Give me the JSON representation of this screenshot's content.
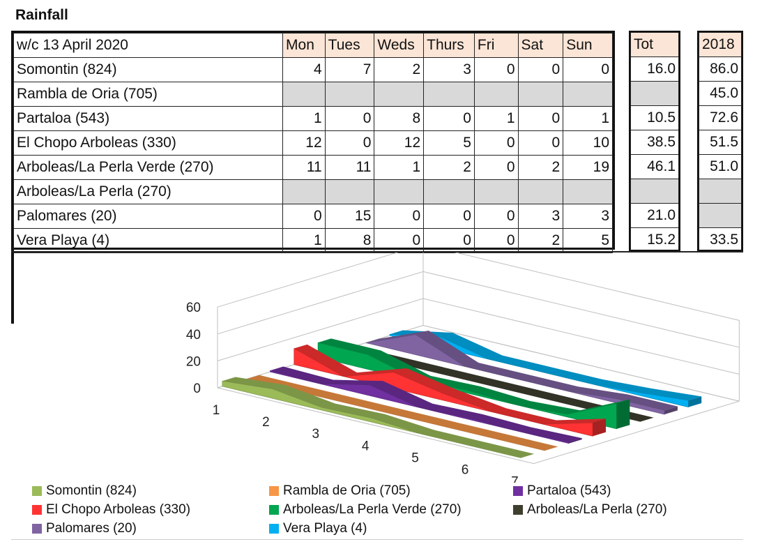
{
  "title": "Rainfall",
  "table": {
    "corner": "w/c 13 April 2020",
    "days": [
      "Mon",
      "Tues",
      "Weds",
      "Thurs",
      "Fri",
      "Sat",
      "Sun"
    ],
    "tot_header": "Tot",
    "year_header": "2018",
    "rows": [
      {
        "name": "Somontin (824)",
        "values": [
          "4",
          "7",
          "2",
          "3",
          "0",
          "0",
          "0"
        ],
        "tot": "16.0",
        "prev": "86.0"
      },
      {
        "name": "Rambla de Oria (705)",
        "values": [
          "",
          "",
          "",
          "",
          "",
          "",
          ""
        ],
        "tot": "",
        "prev": "45.0"
      },
      {
        "name": "Partaloa (543)",
        "values": [
          "1",
          "0",
          "8",
          "0",
          "1",
          "0",
          "1"
        ],
        "tot": "10.5",
        "prev": "72.6"
      },
      {
        "name": "El Chopo Arboleas (330)",
        "values": [
          "12",
          "0",
          "12",
          "5",
          "0",
          "0",
          "10"
        ],
        "tot": "38.5",
        "prev": "51.5"
      },
      {
        "name": "Arboleas/La Perla Verde (270)",
        "values": [
          "11",
          "11",
          "1",
          "2",
          "0",
          "2",
          "19"
        ],
        "tot": "46.1",
        "prev": "51.0"
      },
      {
        "name": "Arboleas/La Perla (270)",
        "values": [
          "",
          "",
          "",
          "",
          "",
          "",
          ""
        ],
        "tot": "",
        "prev": ""
      },
      {
        "name": "Palomares (20)",
        "values": [
          "0",
          "15",
          "0",
          "0",
          "0",
          "3",
          "3"
        ],
        "tot": "21.0",
        "prev": ""
      },
      {
        "name": "Vera Playa (4)",
        "values": [
          "1",
          "8",
          "0",
          "0",
          "0",
          "2",
          "5"
        ],
        "tot": "15.2",
        "prev": "33.5"
      }
    ]
  },
  "chart_data": {
    "type": "area",
    "subtype": "3d-area",
    "x": [
      1,
      2,
      3,
      4,
      5,
      6,
      7
    ],
    "ylim": [
      0,
      60
    ],
    "yticks": [
      0,
      20,
      40,
      60
    ],
    "series": [
      {
        "name": "Somontin (824)",
        "color": "#9bbb59",
        "values": [
          4,
          7,
          2,
          3,
          0,
          0,
          0
        ]
      },
      {
        "name": "Rambla de Oria (705)",
        "color": "#f79646",
        "values": [
          0,
          0,
          0,
          0,
          0,
          0,
          0
        ]
      },
      {
        "name": "Partaloa (543)",
        "color": "#7030a0",
        "values": [
          1,
          0,
          8,
          0,
          1,
          0,
          1
        ]
      },
      {
        "name": "El Chopo Arboleas (330)",
        "color": "#ff3333",
        "values": [
          12,
          0,
          12,
          5,
          0,
          0,
          10
        ]
      },
      {
        "name": "Arboleas/La Perla Verde (270)",
        "color": "#00a650",
        "values": [
          11,
          11,
          1,
          2,
          0,
          2,
          19
        ]
      },
      {
        "name": "Arboleas/La Perla (270)",
        "color": "#3f3f2f",
        "values": [
          0,
          0,
          0,
          0,
          0,
          0,
          0
        ]
      },
      {
        "name": "Palomares (20)",
        "color": "#8064a2",
        "values": [
          0,
          15,
          0,
          0,
          0,
          3,
          3
        ]
      },
      {
        "name": "Vera Playa (4)",
        "color": "#00b0f0",
        "values": [
          1,
          8,
          0,
          0,
          0,
          2,
          5
        ]
      }
    ],
    "legend": "bottom",
    "grid": true
  }
}
